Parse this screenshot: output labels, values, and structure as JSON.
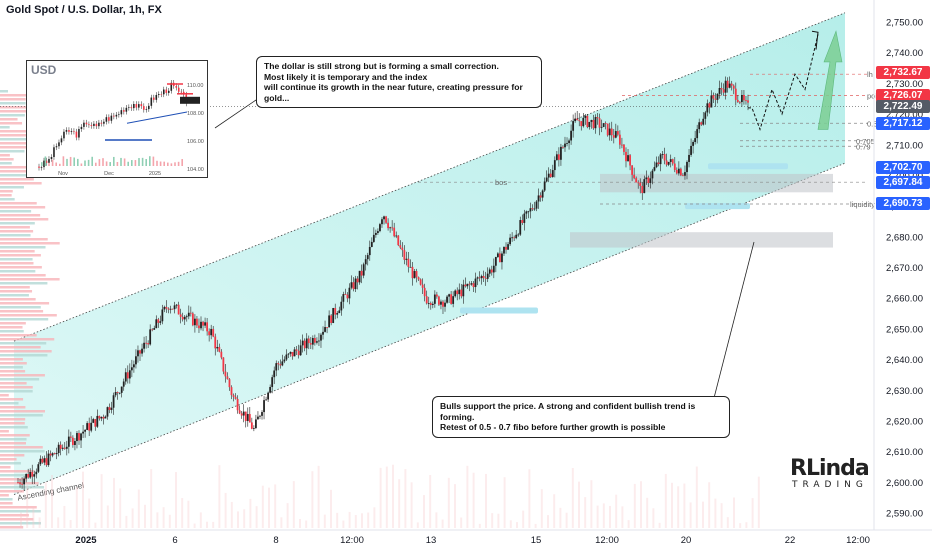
{
  "header": {
    "title": "Gold Spot / U.S. Dollar, 1h, FX"
  },
  "notes": {
    "top": "The dollar is still strong but is forming a small correction.\nMost likely it is temporary and the index\nwill continue its growth in the near future, creating pressure for gold...",
    "bottom": "Bulls support the price. A strong and confident bullish trend is forming.\nRetest of 0.5 - 0.7 fibo before further growth is possible"
  },
  "brand": {
    "top": "RLinda",
    "bottom": "TRADING"
  },
  "inset": {
    "title": "USD",
    "yticks": [
      "110.00",
      "108.00",
      "106.00",
      "104.00"
    ],
    "xticks": [
      "Nov",
      "Dec",
      "2025"
    ]
  },
  "price_tags": [
    {
      "value": "2,732.67",
      "color": "#f23645"
    },
    {
      "value": "2,726.07",
      "color": "#f23645"
    },
    {
      "value": "2,722.49",
      "color": "#555b66"
    },
    {
      "value": "2,717.12",
      "color": "#2962ff"
    },
    {
      "value": "2,702.70",
      "color": "#2962ff"
    },
    {
      "value": "2,697.84",
      "color": "#2962ff"
    },
    {
      "value": "2,690.73",
      "color": "#2962ff"
    }
  ],
  "chart_data": {
    "type": "candlestick",
    "title": "Gold Spot / U.S. Dollar, 1h, FX",
    "ylim": [
      2586,
      2753
    ],
    "y_ticks": [
      2590,
      2600,
      2610,
      2620,
      2630,
      2640,
      2650,
      2660,
      2670,
      2680,
      2690,
      2700,
      2710,
      2720,
      2730,
      2740,
      2750
    ],
    "y_tick_labels": [
      "2,590.00",
      "2,600.00",
      "2,610.00",
      "2,620.00",
      "2,630.00",
      "2,640.00",
      "2,650.00",
      "2,660.00",
      "2,670.00",
      "2,680.00",
      "2,690.00",
      "2,700.00",
      "2,710.00",
      "2,720.00",
      "2,730.00",
      "2,740.00",
      "2,750.00"
    ],
    "x_labels": [
      "2025",
      "6",
      "8",
      "12:00",
      "13",
      "15",
      "12:00",
      "20",
      "22",
      "12:00"
    ],
    "path_points": [
      [
        0,
        2600
      ],
      [
        4,
        2622
      ],
      [
        7,
        2658
      ],
      [
        9,
        2649
      ],
      [
        10,
        2628
      ],
      [
        11,
        2617
      ],
      [
        12,
        2638
      ],
      [
        14,
        2648
      ],
      [
        16,
        2668
      ],
      [
        17,
        2688
      ],
      [
        18,
        2673
      ],
      [
        19,
        2660
      ],
      [
        20,
        2659
      ],
      [
        22,
        2669
      ],
      [
        24,
        2690
      ],
      [
        26,
        2718
      ],
      [
        27,
        2717
      ],
      [
        28,
        2712
      ],
      [
        29,
        2695
      ],
      [
        30,
        2706
      ],
      [
        31,
        2701
      ],
      [
        32,
        2722
      ],
      [
        33,
        2730
      ],
      [
        34,
        2722
      ]
    ],
    "projection": [
      [
        34,
        2722
      ],
      [
        35,
        2731
      ],
      [
        36,
        2726
      ],
      [
        37,
        2745
      ]
    ],
    "levels": [
      {
        "label": "lh",
        "value": 2733
      },
      {
        "label": "poi",
        "value": 2726
      },
      {
        "label": "0.5",
        "value": 2717
      },
      {
        "label": "0.705",
        "value": 2711.3
      },
      {
        "label": "0.79",
        "value": 2709.5
      },
      {
        "label": "bos",
        "value": 2697.8
      },
      {
        "label": "liquidity",
        "value": 2690.7
      }
    ],
    "channel": {
      "label": "Ascending channel"
    },
    "annotations": [
      "lh",
      "poi",
      "0.5",
      "0.705",
      "0.79",
      "bos",
      "liquidity",
      "Ascending channel"
    ]
  }
}
